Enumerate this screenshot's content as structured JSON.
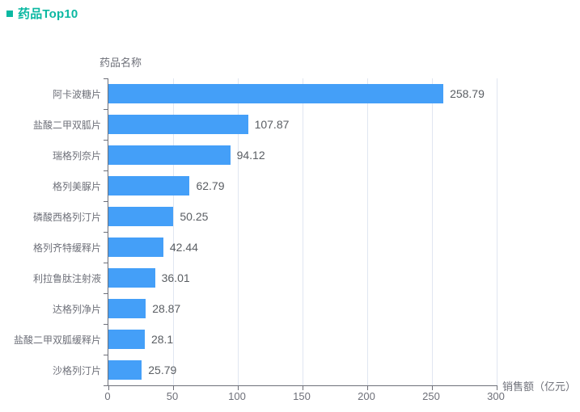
{
  "title": {
    "text": "药品Top10",
    "color": "#0bb8a2"
  },
  "chart_data": {
    "type": "bar",
    "orientation": "horizontal",
    "title": "药品Top10",
    "ylabel": "药品名称",
    "xlabel": "销售额（亿元）",
    "categories": [
      "阿卡波糖片",
      "盐酸二甲双胍片",
      "瑞格列奈片",
      "格列美脲片",
      "磷酸西格列汀片",
      "格列齐特缓释片",
      "利拉鲁肽注射液",
      "达格列净片",
      "盐酸二甲双胍缓释片",
      "沙格列汀片"
    ],
    "values": [
      258.79,
      107.87,
      94.12,
      62.79,
      50.25,
      42.44,
      36.01,
      28.87,
      28.1,
      25.79
    ],
    "value_labels": [
      "258.79",
      "107.87",
      "94.12",
      "62.79",
      "50.25",
      "42.44",
      "36.01",
      "28.87",
      "28.1",
      "25.79"
    ],
    "x_ticks": [
      "0",
      "50",
      "100",
      "150",
      "200",
      "250",
      "300"
    ],
    "xlim": [
      0,
      300
    ],
    "grid": true,
    "legend_position": "none",
    "colors": {
      "bar": "#449ff8",
      "axis": "#6e7079",
      "grid": "#e0e6f1",
      "tick_label": "#6e7079",
      "value_label": "#5a5e63",
      "title": "#0bb8a2"
    }
  }
}
